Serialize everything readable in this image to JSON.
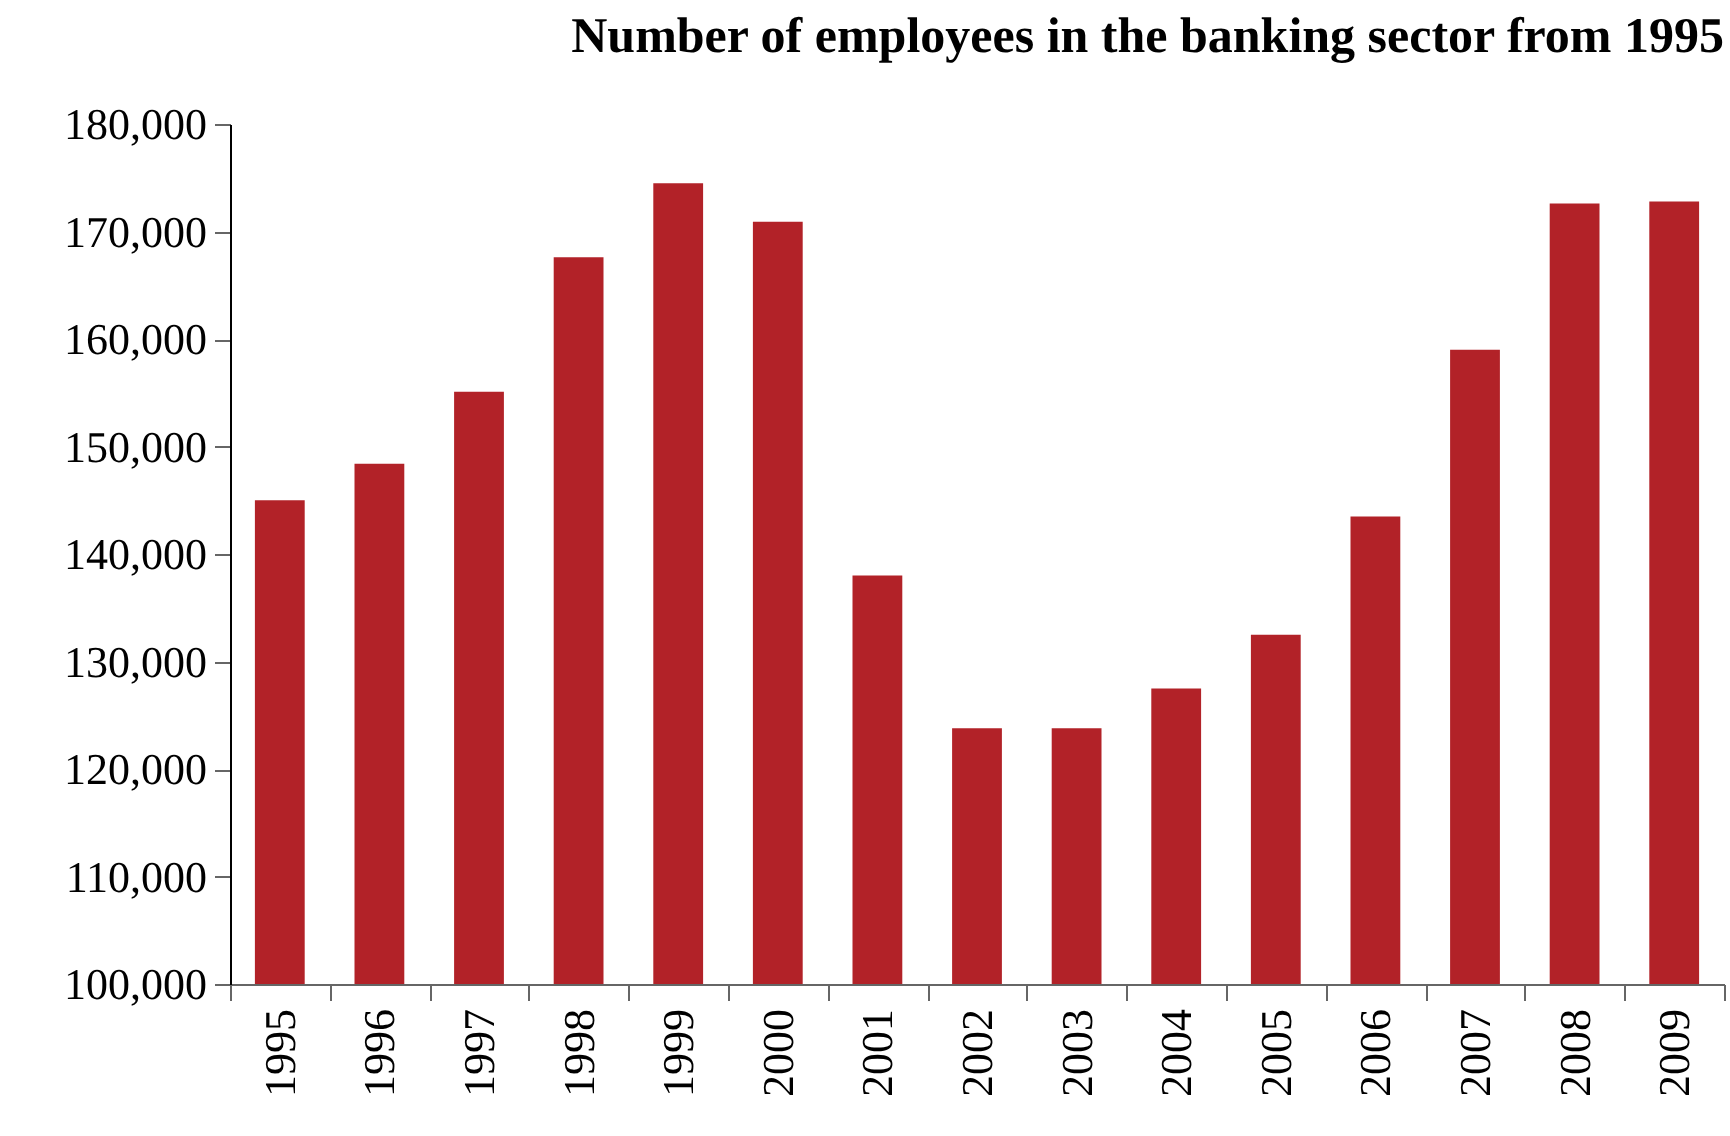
{
  "chart_data": {
    "type": "bar",
    "title": "Number of employees in the banking sector from 1995",
    "categories": [
      "1995",
      "1996",
      "1997",
      "1998",
      "1999",
      "2000",
      "2001",
      "2002",
      "2003",
      "2004",
      "2005",
      "2006",
      "2007",
      "2008",
      "2009"
    ],
    "values": [
      145000,
      148400,
      155100,
      167600,
      174500,
      170900,
      138000,
      123800,
      123800,
      127500,
      132500,
      143500,
      159000,
      172600,
      172800
    ],
    "color": "#b22228",
    "ylim": [
      100000,
      180000
    ],
    "yticks": [
      {
        "value": 100000,
        "label": "100,000"
      },
      {
        "value": 110000,
        "label": "110,000"
      },
      {
        "value": 120000,
        "label": "120,000"
      },
      {
        "value": 130000,
        "label": "130,000"
      },
      {
        "value": 140000,
        "label": "140,000"
      },
      {
        "value": 150000,
        "label": "150,000"
      },
      {
        "value": 160000,
        "label": "160,000"
      },
      {
        "value": 170000,
        "label": "170,000"
      },
      {
        "value": 180000,
        "label": "180,000"
      }
    ],
    "grid": false
  }
}
